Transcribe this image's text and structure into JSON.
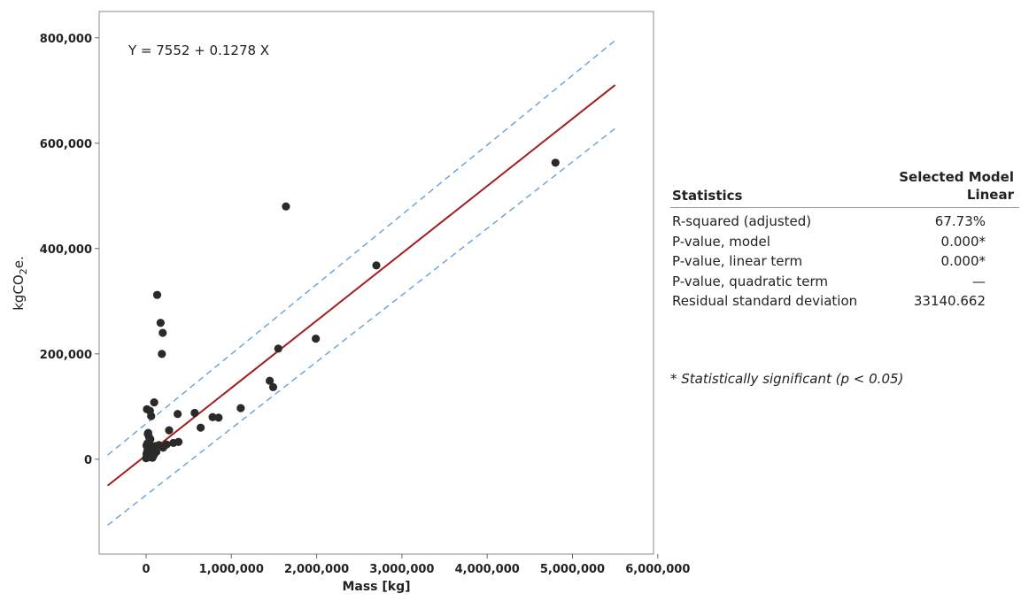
{
  "chart_data": {
    "type": "scatter",
    "title": "",
    "equation": "Y = 7552 + 0.1278 X",
    "xlabel": "Mass [kg]",
    "ylabel_main": "kgCO",
    "ylabel_sub": "2",
    "ylabel_tail": "e.",
    "xlim": [
      -550000,
      5950000
    ],
    "ylim": [
      -180000,
      850000
    ],
    "x_ticks": [
      0,
      1000000,
      2000000,
      3000000,
      4000000,
      5000000,
      6000000
    ],
    "x_tick_labels": [
      "0",
      "1,000,000",
      "2,000,000",
      "3,000,000",
      "4,000,000",
      "5,000,000",
      "6,000,000"
    ],
    "y_ticks": [
      0,
      200000,
      400000,
      600000,
      800000
    ],
    "y_tick_labels": [
      "0",
      "200,000",
      "400,000",
      "600,000",
      "800,000"
    ],
    "fit": {
      "intercept": 7552,
      "slope": 0.1278,
      "x_range": [
        -450000,
        5500000
      ],
      "color": "#a11c1c"
    },
    "prediction_band": {
      "upper": {
        "x": [
          -450000,
          5500000
        ],
        "y": [
          8000,
          795000
        ]
      },
      "lower": {
        "x": [
          -450000,
          5500000
        ],
        "y": [
          -125000,
          628000
        ]
      },
      "color": "#5b9bd5"
    },
    "point_color": "#2a2a2a",
    "points": [
      {
        "x": 4800000,
        "y": 563000
      },
      {
        "x": 1640000,
        "y": 480000
      },
      {
        "x": 2700000,
        "y": 368000
      },
      {
        "x": 130000,
        "y": 312000
      },
      {
        "x": 170000,
        "y": 259000
      },
      {
        "x": 195000,
        "y": 240000
      },
      {
        "x": 1990000,
        "y": 229000
      },
      {
        "x": 1550000,
        "y": 210000
      },
      {
        "x": 185000,
        "y": 200000
      },
      {
        "x": 1450000,
        "y": 149000
      },
      {
        "x": 1490000,
        "y": 137000
      },
      {
        "x": 95000,
        "y": 108000
      },
      {
        "x": 1110000,
        "y": 97000
      },
      {
        "x": 10000,
        "y": 95000
      },
      {
        "x": 45000,
        "y": 92000
      },
      {
        "x": 570000,
        "y": 88000
      },
      {
        "x": 370000,
        "y": 86000
      },
      {
        "x": 60000,
        "y": 82000
      },
      {
        "x": 780000,
        "y": 80000
      },
      {
        "x": 850000,
        "y": 79000
      },
      {
        "x": 640000,
        "y": 60000
      },
      {
        "x": 270000,
        "y": 55000
      },
      {
        "x": 20000,
        "y": 48000
      },
      {
        "x": 35000,
        "y": 42000
      },
      {
        "x": 40000,
        "y": 35000
      },
      {
        "x": 380000,
        "y": 33000
      },
      {
        "x": 320000,
        "y": 31000
      },
      {
        "x": 240000,
        "y": 28000
      },
      {
        "x": 150000,
        "y": 27000
      },
      {
        "x": 60000,
        "y": 25000
      },
      {
        "x": 30000,
        "y": 22000
      },
      {
        "x": 100000,
        "y": 20000
      },
      {
        "x": 80000,
        "y": 18000
      },
      {
        "x": 15000,
        "y": 16000
      },
      {
        "x": 50000,
        "y": 15000
      },
      {
        "x": 120000,
        "y": 14000
      },
      {
        "x": 25000,
        "y": 12000
      },
      {
        "x": 70000,
        "y": 11000
      },
      {
        "x": 5000,
        "y": 10000
      },
      {
        "x": 40000,
        "y": 9000
      },
      {
        "x": 90000,
        "y": 8000
      },
      {
        "x": 20000,
        "y": 7000
      },
      {
        "x": 60000,
        "y": 6000
      },
      {
        "x": 10000,
        "y": 5000
      },
      {
        "x": 35000,
        "y": 4000
      },
      {
        "x": 75000,
        "y": 3000
      },
      {
        "x": 0,
        "y": 2000
      },
      {
        "x": 15000,
        "y": 30000
      },
      {
        "x": 45000,
        "y": 28000
      },
      {
        "x": 110000,
        "y": 25000
      },
      {
        "x": 200000,
        "y": 22000
      },
      {
        "x": 50000,
        "y": 38000
      },
      {
        "x": 5000,
        "y": 26000
      },
      {
        "x": 25000,
        "y": 50000
      }
    ]
  },
  "stats": {
    "header_left": "Statistics",
    "header_right_line1": "Selected Model",
    "header_right_line2": "Linear",
    "rows": [
      {
        "name": "R-squared (adjusted)",
        "value": "67.73%"
      },
      {
        "name": "P-value, model",
        "value": "0.000*"
      },
      {
        "name": "P-value, linear term",
        "value": "0.000*"
      },
      {
        "name": "P-value, quadratic term",
        "value": "—"
      },
      {
        "name": "Residual standard deviation",
        "value": "33140.662"
      }
    ],
    "footnote": "* Statistically significant (p < 0.05)"
  }
}
